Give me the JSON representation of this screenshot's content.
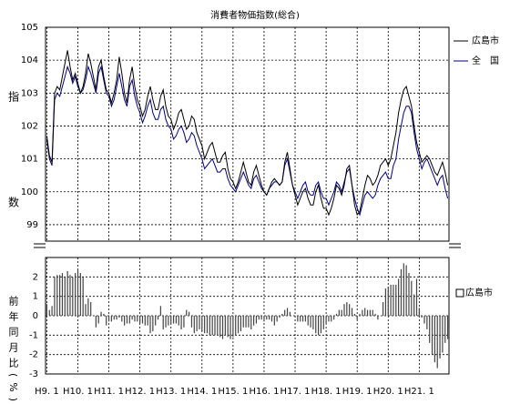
{
  "chart_data": [
    {
      "type": "line",
      "title": "消費者物価指数(総合)",
      "y_label": "指数",
      "ylim": [
        98.5,
        105
      ],
      "yticks": [
        99,
        100,
        101,
        102,
        103,
        104,
        105
      ],
      "grid": true,
      "series": [
        {
          "name": "広島市",
          "color": "#000000",
          "values": [
            101.7,
            101.1,
            100.9,
            103.0,
            103.2,
            103.1,
            103.5,
            103.9,
            104.3,
            103.8,
            103.4,
            103.6,
            103.3,
            103.0,
            103.2,
            103.6,
            104.2,
            103.9,
            103.5,
            103.1,
            103.8,
            104.0,
            103.5,
            103.1,
            103.0,
            102.7,
            103.0,
            103.4,
            104.1,
            103.6,
            103.0,
            102.7,
            103.4,
            103.8,
            103.2,
            102.8,
            102.6,
            102.3,
            102.5,
            102.9,
            103.2,
            102.8,
            102.5,
            102.5,
            102.9,
            103.1,
            102.6,
            102.3,
            102.2,
            101.9,
            102.1,
            102.4,
            102.5,
            102.2,
            101.9,
            102.0,
            102.3,
            102.2,
            101.8,
            101.6,
            101.4,
            101.0,
            101.2,
            101.4,
            101.5,
            101.2,
            100.9,
            100.9,
            101.1,
            101.2,
            100.7,
            100.4,
            100.3,
            100.1,
            100.3,
            100.6,
            100.9,
            100.6,
            100.3,
            100.2,
            100.6,
            100.8,
            100.5,
            100.2,
            100.0,
            99.9,
            100.1,
            100.3,
            100.4,
            100.3,
            100.2,
            100.3,
            100.9,
            101.2,
            100.7,
            100.2,
            99.9,
            99.6,
            99.8,
            100.0,
            100.1,
            99.8,
            99.6,
            99.6,
            100.0,
            100.2,
            99.8,
            99.5,
            99.5,
            99.3,
            99.5,
            99.8,
            100.2,
            100.1,
            99.9,
            100.2,
            100.7,
            100.8,
            100.2,
            99.6,
            99.3,
            99.4,
            99.8,
            100.2,
            100.5,
            100.4,
            100.2,
            100.3,
            100.5,
            100.8,
            100.9,
            101.0,
            100.8,
            101.0,
            101.4,
            101.8,
            102.4,
            102.8,
            103.1,
            103.2,
            102.9,
            102.6,
            102.0,
            101.5,
            101.2,
            100.9,
            101.0,
            101.1,
            101.0,
            100.8,
            100.6,
            100.5,
            100.7,
            100.9,
            100.6,
            100.2
          ]
        },
        {
          "name": "全　国",
          "color": "#000080",
          "values": [
            101.6,
            101.0,
            100.8,
            102.8,
            103.0,
            102.9,
            103.2,
            103.5,
            103.8,
            103.6,
            103.3,
            103.5,
            103.2,
            103.0,
            103.1,
            103.4,
            103.8,
            103.6,
            103.3,
            103.0,
            103.6,
            103.8,
            103.4,
            103.0,
            102.9,
            102.6,
            102.8,
            103.2,
            103.6,
            103.2,
            102.8,
            102.6,
            103.2,
            103.4,
            102.9,
            102.6,
            102.4,
            102.1,
            102.3,
            102.6,
            102.8,
            102.4,
            102.2,
            102.2,
            102.5,
            102.6,
            102.2,
            102.0,
            101.9,
            101.6,
            101.7,
            101.9,
            102.0,
            101.8,
            101.5,
            101.6,
            101.8,
            101.7,
            101.4,
            101.2,
            101.0,
            100.7,
            100.8,
            100.9,
            101.0,
            100.8,
            100.6,
            100.6,
            100.7,
            100.7,
            100.4,
            100.2,
            100.1,
            100.0,
            100.2,
            100.4,
            100.6,
            100.4,
            100.2,
            100.1,
            100.4,
            100.5,
            100.3,
            100.1,
            100.0,
            99.9,
            100.1,
            100.2,
            100.3,
            100.3,
            100.2,
            100.3,
            100.8,
            101.0,
            100.6,
            100.2,
            100.0,
            99.8,
            100.0,
            100.2,
            100.3,
            100.0,
            99.9,
            99.9,
            100.2,
            100.3,
            100.0,
            99.8,
            99.8,
            99.6,
            99.8,
            100.0,
            100.3,
            100.2,
            100.0,
            100.3,
            100.6,
            100.7,
            100.2,
            99.8,
            99.5,
            99.3,
            99.6,
            99.9,
            100.0,
            99.9,
            99.8,
            99.9,
            100.2,
            100.4,
            100.5,
            100.6,
            100.4,
            100.4,
            100.8,
            101.0,
            101.6,
            102.0,
            102.4,
            102.6,
            102.6,
            102.4,
            101.8,
            101.3,
            101.0,
            100.7,
            100.9,
            101.0,
            100.8,
            100.6,
            100.4,
            100.2,
            100.4,
            100.5,
            100.1,
            99.8
          ]
        }
      ]
    },
    {
      "type": "bar",
      "y_label": "前年同月比(%)",
      "ylim": [
        -3,
        3
      ],
      "yticks": [
        -3,
        -2,
        -1,
        0,
        1,
        2
      ],
      "grid": true,
      "categories": [
        "H9. 1",
        null,
        null,
        null,
        null,
        null,
        null,
        null,
        null,
        null,
        null,
        null,
        "H10. 1",
        null,
        null,
        null,
        null,
        null,
        null,
        null,
        null,
        null,
        null,
        null,
        "H11. 1",
        null,
        null,
        null,
        null,
        null,
        null,
        null,
        null,
        null,
        null,
        null,
        "H12. 1",
        null,
        null,
        null,
        null,
        null,
        null,
        null,
        null,
        null,
        null,
        null,
        "H13. 1",
        null,
        null,
        null,
        null,
        null,
        null,
        null,
        null,
        null,
        null,
        null,
        "H14. 1",
        null,
        null,
        null,
        null,
        null,
        null,
        null,
        null,
        null,
        null,
        null,
        "H15. 1",
        null,
        null,
        null,
        null,
        null,
        null,
        null,
        null,
        null,
        null,
        null,
        "H16. 1",
        null,
        null,
        null,
        null,
        null,
        null,
        null,
        null,
        null,
        null,
        null,
        "H17. 1",
        null,
        null,
        null,
        null,
        null,
        null,
        null,
        null,
        null,
        null,
        null,
        "H18. 1",
        null,
        null,
        null,
        null,
        null,
        null,
        null,
        null,
        null,
        null,
        null,
        "H19. 1",
        null,
        null,
        null,
        null,
        null,
        null,
        null,
        null,
        null,
        null,
        null,
        "H20. 1",
        null,
        null,
        null,
        null,
        null,
        null,
        null,
        null,
        null,
        null,
        null,
        "H21. 1",
        null,
        null,
        null,
        null,
        null,
        null,
        null,
        null,
        null,
        null,
        null
      ],
      "series": [
        {
          "name": "広島市",
          "color": "#444444",
          "values": [
            0.6,
            0.3,
            0.5,
            2.0,
            2.1,
            2.1,
            2.2,
            2.0,
            2.3,
            2.1,
            2.0,
            2.2,
            2.4,
            2.2,
            2.0,
            0.6,
            0.9,
            0.7,
            0.0,
            -0.6,
            -0.4,
            0.2,
            0.1,
            -0.5,
            -0.3,
            -0.3,
            -0.2,
            -0.2,
            -0.1,
            -0.3,
            -0.5,
            -0.4,
            -0.4,
            -0.2,
            -0.3,
            -0.3,
            -0.4,
            -0.4,
            -0.5,
            -0.5,
            -0.9,
            -0.8,
            -0.5,
            -0.2,
            0.5,
            -0.7,
            -0.6,
            -0.5,
            -0.4,
            -0.4,
            -0.4,
            -0.5,
            -0.7,
            -0.6,
            0.3,
            0.2,
            -0.6,
            -0.9,
            -0.8,
            -0.7,
            -0.8,
            -0.9,
            -0.9,
            -1.0,
            -1.0,
            -1.0,
            -1.0,
            -1.1,
            -1.2,
            -1.0,
            -1.1,
            -1.2,
            -1.1,
            -1.0,
            -0.9,
            -0.8,
            -0.6,
            -0.6,
            -0.6,
            -0.7,
            -0.5,
            -0.4,
            -0.2,
            -0.2,
            -0.3,
            -0.2,
            -0.2,
            -0.3,
            -0.5,
            -0.3,
            -0.1,
            0.1,
            0.3,
            0.4,
            0.2,
            0.0,
            -0.1,
            -0.3,
            -0.3,
            -0.3,
            -0.3,
            -0.5,
            -0.6,
            -0.7,
            -0.9,
            -1.0,
            -0.9,
            -0.7,
            -0.4,
            -0.3,
            -0.3,
            -0.2,
            0.1,
            0.3,
            0.3,
            0.6,
            0.7,
            0.6,
            0.4,
            0.1,
            -0.2,
            0.1,
            0.3,
            0.4,
            0.3,
            0.3,
            0.3,
            0.1,
            -0.2,
            0.0,
            0.7,
            1.4,
            1.5,
            1.6,
            1.6,
            1.6,
            1.9,
            2.4,
            2.7,
            2.6,
            2.2,
            1.8,
            1.1,
            1.9,
            0.4,
            -0.1,
            -0.4,
            -0.7,
            -1.4,
            -2.0,
            -2.4,
            -2.7,
            -2.2,
            -1.9,
            -1.4,
            -1.2
          ]
        }
      ]
    }
  ]
}
